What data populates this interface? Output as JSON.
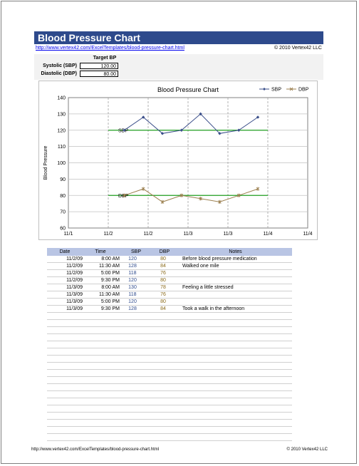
{
  "title": "Blood Pressure Chart",
  "url": "http://www.vertex42.com/ExcelTemplates/blood-pressure-chart.html",
  "copyright": "© 2010 Vertex42 LLC",
  "target": {
    "heading": "Target BP",
    "systolic_label": "Systolic (SBP)",
    "systolic_value": "120.00",
    "diastolic_label": "Diastolic (DBP)",
    "diastolic_value": "80.00"
  },
  "chart_data": {
    "type": "line",
    "title": "Blood Pressure Chart",
    "ylabel": "Blood Pressure",
    "ylim": [
      60,
      140
    ],
    "yticks": [
      60,
      70,
      80,
      90,
      100,
      110,
      120,
      130,
      140
    ],
    "xticks": [
      "11/1",
      "11/2",
      "11/2",
      "11/3",
      "11/3",
      "11/4",
      "11/4"
    ],
    "x": [
      "11/2/09 8:00 AM",
      "11/2/09 11:30 AM",
      "11/2/09 5:00 PM",
      "11/2/09 9:30 PM",
      "11/3/09 8:00 AM",
      "11/3/09 11:30 AM",
      "11/3/09 5:00 PM",
      "11/3/09 9:30 PM"
    ],
    "series": [
      {
        "name": "SBP",
        "values": [
          120,
          128,
          118,
          120,
          130,
          118,
          120,
          128
        ],
        "color": "#3b4f8a"
      },
      {
        "name": "DBP",
        "values": [
          80,
          84,
          76,
          80,
          78,
          76,
          80,
          84
        ],
        "color": "#9c8050"
      }
    ],
    "targets": [
      {
        "label": "SBP",
        "value": 120,
        "color": "#22a022"
      },
      {
        "label": "DBP",
        "value": 80,
        "color": "#22a022"
      }
    ],
    "legend": "top-right",
    "grid": true
  },
  "table": {
    "headers": [
      "Date",
      "Time",
      "SBP",
      "DBP",
      "Notes"
    ],
    "rows": [
      [
        "11/2/09",
        "8:00 AM",
        "120",
        "80",
        "Before blood pressure medication"
      ],
      [
        "11/2/09",
        "11:30 AM",
        "128",
        "84",
        "Walked one mile"
      ],
      [
        "11/2/09",
        "5:00 PM",
        "118",
        "76",
        ""
      ],
      [
        "11/2/09",
        "9:30 PM",
        "120",
        "80",
        ""
      ],
      [
        "11/3/09",
        "8:00 AM",
        "130",
        "78",
        "Feeling a little stressed"
      ],
      [
        "11/3/09",
        "11:30 AM",
        "118",
        "76",
        ""
      ],
      [
        "11/3/09",
        "5:00 PM",
        "120",
        "80",
        ""
      ],
      [
        "11/3/09",
        "9:30 PM",
        "128",
        "84",
        "Took a walk in the afternoon"
      ]
    ]
  },
  "footer": {
    "url": "http://www.vertex42.com/ExcelTemplates/blood-pressure-chart.html",
    "copyright": "© 2010 Vertex42 LLC"
  },
  "colors": {
    "title_bg": "#2e4a8c",
    "header_bg": "#b9c5e4",
    "sbp_text": "#2e4a8c",
    "dbp_text": "#8a6a1a"
  }
}
